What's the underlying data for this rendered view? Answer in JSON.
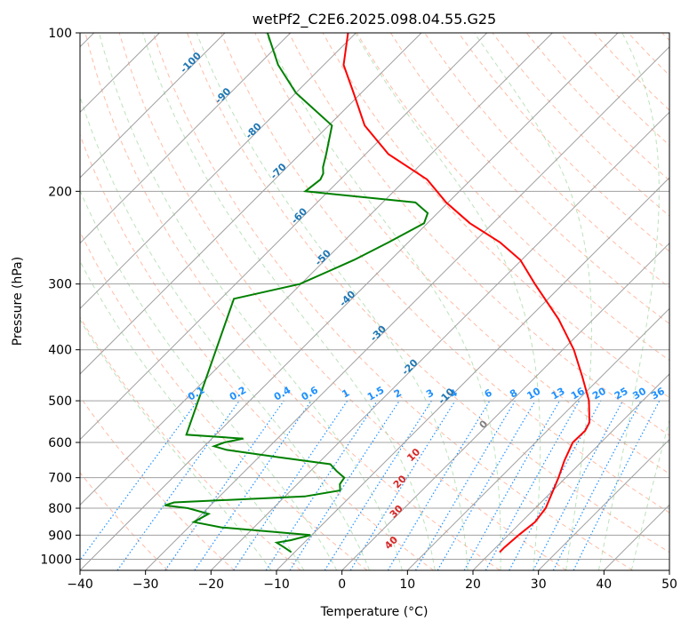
{
  "chart_data": {
    "type": "line",
    "title": "wetPf2_C2E6.2025.098.04.55.G25",
    "xlabel": "Temperature (°C)",
    "ylabel": "Pressure (hPa)",
    "xlim": [
      -40,
      50
    ],
    "ylim": [
      1050,
      100
    ],
    "y_scale": "log",
    "grid": true,
    "x_ticks": [
      "−40",
      "−30",
      "−20",
      "−10",
      "0",
      "10",
      "20",
      "30",
      "40",
      "50"
    ],
    "y_ticks": [
      "100",
      "200",
      "300",
      "400",
      "500",
      "600",
      "700",
      "800",
      "900",
      "1000"
    ],
    "colors": {
      "temperature": "#ff0000",
      "dewpoint": "#008000",
      "isotherm": "#a0a0a0",
      "isobar": "#a0a0a0",
      "dry_adiabat": "#ff9f80",
      "moist_adiabat": "#8fcf8f",
      "mixing_ratio": "#1e90ff",
      "wetbulb_label": "#1f77b4",
      "lower_label": "#d62728"
    },
    "mixing_ratio_labels": [
      "0.1",
      "0.2",
      "0.4",
      "0.6",
      "1",
      "1.5",
      "2",
      "3",
      "4",
      "6",
      "8",
      "10",
      "13",
      "16",
      "20",
      "25",
      "30",
      "36"
    ],
    "wetbulb_labels": [
      "-100",
      "-90",
      "-80",
      "-70",
      "-60",
      "-50",
      "-40",
      "-30",
      "-20",
      "-10",
      "0"
    ],
    "lower_labels": [
      "10",
      "20",
      "30",
      "40"
    ],
    "series": [
      {
        "key": "temperature",
        "p": [
          970,
          950,
          900,
          850,
          800,
          750,
          700,
          650,
          600,
          570,
          550,
          500,
          450,
          400,
          350,
          300,
          270,
          250,
          230,
          210,
          190,
          170,
          150,
          130,
          115,
          100
        ],
        "t": [
          21.3,
          21.3,
          21.6,
          22.1,
          21.6,
          20.3,
          18.9,
          17.2,
          15.7,
          15.8,
          15.2,
          11.8,
          7.1,
          1.7,
          -5.3,
          -14.3,
          -20.2,
          -26.0,
          -33.5,
          -40.3,
          -46.7,
          -56.5,
          -64.5,
          -71.2,
          -77.0,
          -81.2
        ]
      },
      {
        "key": "dewpoint",
        "p": [
          970,
          950,
          930,
          920,
          900,
          870,
          850,
          820,
          800,
          790,
          780,
          760,
          740,
          720,
          700,
          680,
          660,
          640,
          620,
          610,
          600,
          590,
          580,
          320,
          300,
          270,
          250,
          230,
          220,
          210,
          200,
          190,
          185,
          180,
          170,
          150,
          130,
          115,
          100
        ],
        "t": [
          -10.5,
          -12.3,
          -14.2,
          -12.4,
          -10.2,
          -25.0,
          -30.0,
          -29.0,
          -33.0,
          -37.0,
          -36.0,
          -17.0,
          -12.5,
          -13.5,
          -13.8,
          -16.0,
          -18.0,
          -27.0,
          -36.0,
          -38.5,
          -37.5,
          -35.2,
          -44.5,
          -58.0,
          -50.2,
          -45.6,
          -43.0,
          -40.5,
          -41.5,
          -45.0,
          -63.5,
          -63.0,
          -63.5,
          -64.5,
          -66.0,
          -69.5,
          -80.0,
          -87.0,
          -93.5
        ]
      }
    ]
  }
}
